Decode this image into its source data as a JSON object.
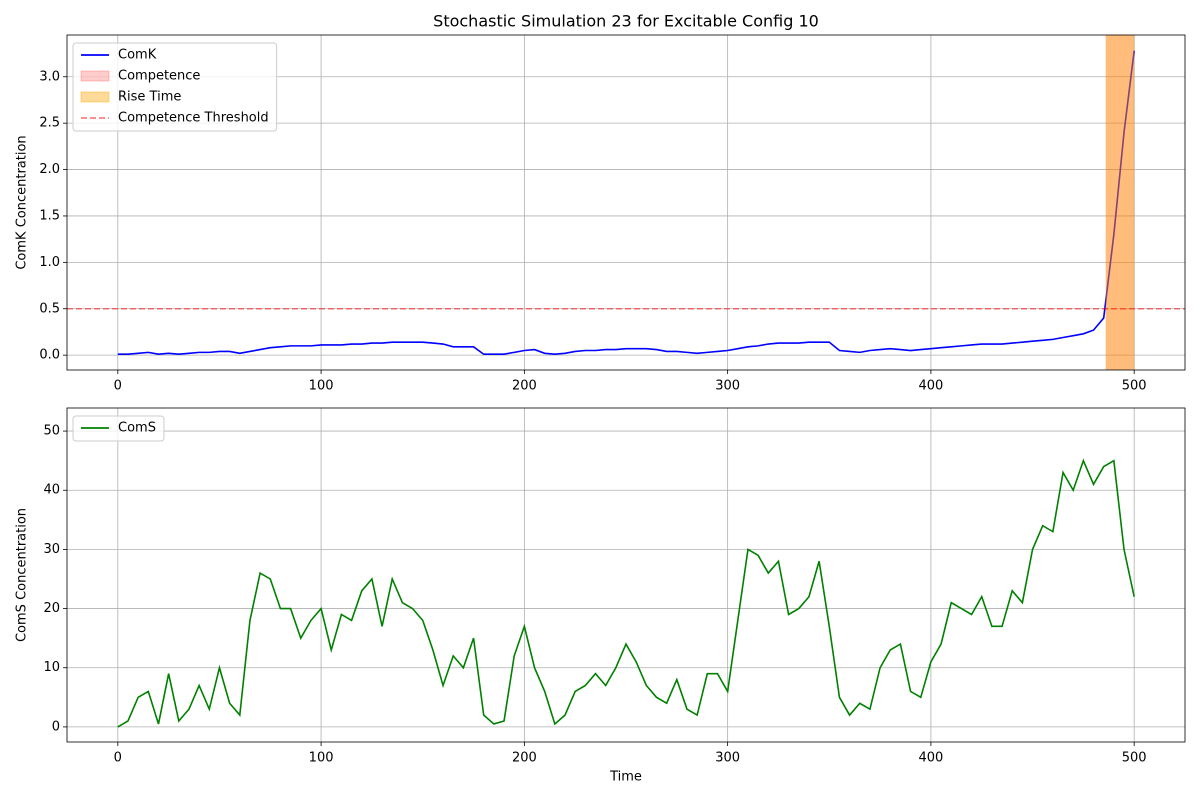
{
  "chart_data": [
    {
      "type": "line",
      "title": "Stochastic Simulation 23 for Excitable Config 10",
      "ylabel": "ComK Concentration",
      "x": [
        0,
        5,
        10,
        15,
        20,
        25,
        30,
        35,
        40,
        45,
        50,
        55,
        60,
        65,
        70,
        75,
        80,
        85,
        90,
        95,
        100,
        105,
        110,
        115,
        120,
        125,
        130,
        135,
        140,
        145,
        150,
        155,
        160,
        165,
        170,
        175,
        180,
        185,
        190,
        195,
        200,
        205,
        210,
        215,
        220,
        225,
        230,
        235,
        240,
        245,
        250,
        255,
        260,
        265,
        270,
        275,
        280,
        285,
        290,
        295,
        300,
        305,
        310,
        315,
        320,
        325,
        330,
        335,
        340,
        345,
        350,
        355,
        360,
        365,
        370,
        375,
        380,
        385,
        390,
        395,
        400,
        405,
        410,
        415,
        420,
        425,
        430,
        435,
        440,
        445,
        450,
        455,
        460,
        465,
        470,
        475,
        480,
        485,
        490,
        495,
        500
      ],
      "series": [
        {
          "name": "ComK",
          "color": "#0000ff",
          "values": [
            0.01,
            0.01,
            0.02,
            0.03,
            0.01,
            0.02,
            0.01,
            0.02,
            0.03,
            0.03,
            0.04,
            0.04,
            0.02,
            0.04,
            0.06,
            0.08,
            0.09,
            0.1,
            0.1,
            0.1,
            0.11,
            0.11,
            0.11,
            0.12,
            0.12,
            0.13,
            0.13,
            0.14,
            0.14,
            0.14,
            0.14,
            0.13,
            0.12,
            0.09,
            0.09,
            0.09,
            0.01,
            0.01,
            0.01,
            0.03,
            0.05,
            0.06,
            0.02,
            0.01,
            0.02,
            0.04,
            0.05,
            0.05,
            0.06,
            0.06,
            0.07,
            0.07,
            0.07,
            0.06,
            0.04,
            0.04,
            0.03,
            0.02,
            0.03,
            0.04,
            0.05,
            0.07,
            0.09,
            0.1,
            0.12,
            0.13,
            0.13,
            0.13,
            0.14,
            0.14,
            0.14,
            0.05,
            0.04,
            0.03,
            0.05,
            0.06,
            0.07,
            0.06,
            0.05,
            0.06,
            0.07,
            0.08,
            0.09,
            0.1,
            0.11,
            0.12,
            0.12,
            0.12,
            0.13,
            0.14,
            0.15,
            0.16,
            0.17,
            0.19,
            0.21,
            0.23,
            0.27,
            0.4,
            1.3,
            2.4,
            3.28
          ]
        }
      ],
      "spans": [
        {
          "name": "Competence",
          "color": "rgba(255,0,0,0.2)",
          "range": [
            486,
            500
          ]
        },
        {
          "name": "Rise Time",
          "color": "rgba(255,165,0,0.4)",
          "range": [
            486,
            500
          ]
        }
      ],
      "hlines": [
        {
          "name": "Competence Threshold",
          "color": "rgba(255,0,0,0.5)",
          "value": 0.5
        }
      ],
      "xlim": [
        -25,
        525
      ],
      "ylim": [
        -0.16,
        3.45
      ],
      "xticks": [
        0,
        100,
        200,
        300,
        400,
        500
      ],
      "yticks": [
        {
          "value": 0,
          "label": "0.0"
        },
        0.5,
        {
          "value": 1,
          "label": "1.0"
        },
        1.5,
        {
          "value": 2,
          "label": "2.0"
        },
        2.5,
        {
          "value": 3,
          "label": "3.0"
        }
      ],
      "grid": true,
      "legend": "upper left"
    },
    {
      "type": "line",
      "xlabel": "Time",
      "ylabel": "ComS Concentration",
      "x": [
        0,
        5,
        10,
        15,
        20,
        25,
        30,
        35,
        40,
        45,
        50,
        55,
        60,
        65,
        70,
        75,
        80,
        85,
        90,
        95,
        100,
        105,
        110,
        115,
        120,
        125,
        130,
        135,
        140,
        145,
        150,
        155,
        160,
        165,
        170,
        175,
        180,
        185,
        190,
        195,
        200,
        205,
        210,
        215,
        220,
        225,
        230,
        235,
        240,
        245,
        250,
        255,
        260,
        265,
        270,
        275,
        280,
        285,
        290,
        295,
        300,
        305,
        310,
        315,
        320,
        325,
        330,
        335,
        340,
        345,
        350,
        355,
        360,
        365,
        370,
        375,
        380,
        385,
        390,
        395,
        400,
        405,
        410,
        415,
        420,
        425,
        430,
        435,
        440,
        445,
        450,
        455,
        460,
        465,
        470,
        475,
        480,
        485,
        490,
        495,
        500
      ],
      "series": [
        {
          "name": "ComS",
          "color": "#008000",
          "values": [
            0,
            1,
            5,
            6,
            0.5,
            9,
            1,
            3,
            7,
            3,
            10,
            4,
            2,
            18,
            26,
            25,
            20,
            20,
            15,
            18,
            20,
            13,
            19,
            18,
            23,
            25,
            17,
            25,
            21,
            20,
            18,
            13,
            7,
            12,
            10,
            15,
            2,
            0.5,
            1,
            12,
            17,
            10,
            6,
            0.5,
            2,
            6,
            7,
            9,
            7,
            10,
            14,
            11,
            7,
            5,
            4,
            8,
            3,
            2,
            9,
            9,
            6,
            18,
            30,
            29,
            26,
            28,
            19,
            20,
            22,
            28,
            17,
            5,
            2,
            4,
            3,
            10,
            13,
            14,
            6,
            5,
            11,
            14,
            21,
            20,
            19,
            22,
            17,
            17,
            23,
            21,
            30,
            34,
            33,
            43,
            40,
            45,
            41,
            44,
            45,
            30,
            22
          ]
        }
      ],
      "xlim": [
        -25,
        525
      ],
      "ylim": [
        -2.55,
        53.9
      ],
      "xticks": [
        0,
        100,
        200,
        300,
        400,
        500
      ],
      "yticks": [
        0,
        10,
        20,
        30,
        40,
        50
      ],
      "grid": true,
      "legend": "upper left"
    }
  ]
}
